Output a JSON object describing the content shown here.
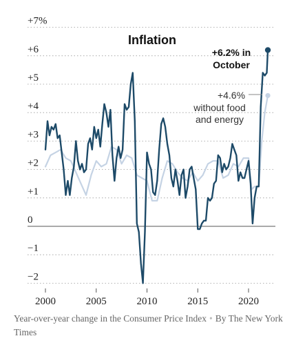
{
  "chart_data": {
    "type": "line",
    "title": "Inflation",
    "xlim": [
      1999.3,
      2023.2
    ],
    "ylim": [
      -2.2,
      7.2
    ],
    "y_ticks": [
      7,
      6,
      5,
      4,
      3,
      2,
      1,
      0,
      -1,
      -2
    ],
    "y_tick_labels": [
      "+7%",
      "+6",
      "+5",
      "+4",
      "+3",
      "+2",
      "+1",
      "0",
      "−1",
      "−2"
    ],
    "x_ticks": [
      2000,
      2005,
      2010,
      2015,
      2020
    ],
    "x_tick_labels": [
      "2000",
      "2005",
      "2010",
      "2015",
      "2020"
    ],
    "zero_line": true,
    "grid": "horizontal dotted",
    "colors": {
      "headline": "#1d4a68",
      "core": "#c5d3e4",
      "grid": "#999999",
      "zero_line": "#777777",
      "tick_text": "#222222"
    },
    "series": [
      {
        "key": "headline",
        "x": [
          2000.0,
          2000.2,
          2000.4,
          2000.6,
          2000.8,
          2001.0,
          2001.2,
          2001.4,
          2001.6,
          2001.8,
          2002.0,
          2002.2,
          2002.4,
          2002.6,
          2002.8,
          2003.0,
          2003.2,
          2003.4,
          2003.6,
          2003.8,
          2004.0,
          2004.2,
          2004.4,
          2004.6,
          2004.8,
          2005.0,
          2005.2,
          2005.4,
          2005.6,
          2005.8,
          2006.0,
          2006.2,
          2006.4,
          2006.6,
          2006.8,
          2007.0,
          2007.2,
          2007.4,
          2007.6,
          2007.8,
          2008.0,
          2008.2,
          2008.4,
          2008.6,
          2008.8,
          2009.0,
          2009.2,
          2009.4,
          2009.6,
          2009.8,
          2010.0,
          2010.2,
          2010.4,
          2010.6,
          2010.8,
          2011.0,
          2011.2,
          2011.4,
          2011.6,
          2011.8,
          2012.0,
          2012.2,
          2012.4,
          2012.6,
          2012.8,
          2013.0,
          2013.2,
          2013.4,
          2013.6,
          2013.8,
          2014.0,
          2014.2,
          2014.4,
          2014.6,
          2014.8,
          2015.0,
          2015.2,
          2015.4,
          2015.6,
          2015.8,
          2016.0,
          2016.2,
          2016.4,
          2016.6,
          2016.8,
          2017.0,
          2017.2,
          2017.4,
          2017.6,
          2017.8,
          2018.0,
          2018.2,
          2018.4,
          2018.6,
          2018.8,
          2019.0,
          2019.2,
          2019.4,
          2019.6,
          2019.8,
          2020.0,
          2020.2,
          2020.4,
          2020.6,
          2020.8,
          2021.0,
          2021.2,
          2021.4,
          2021.6,
          2021.8,
          2021.9
        ],
        "values": [
          2.7,
          3.7,
          3.2,
          3.5,
          3.4,
          3.6,
          3.1,
          3.2,
          2.6,
          2.0,
          1.1,
          1.6,
          1.1,
          1.7,
          2.1,
          3.0,
          2.3,
          2.0,
          2.2,
          1.9,
          2.0,
          2.9,
          3.1,
          2.7,
          3.5,
          3.1,
          3.4,
          2.8,
          3.6,
          4.3,
          4.0,
          3.5,
          4.1,
          2.5,
          1.6,
          2.4,
          2.8,
          2.4,
          2.7,
          4.3,
          4.1,
          4.2,
          5.0,
          5.4,
          3.7,
          0.1,
          -0.2,
          -1.3,
          -2.0,
          -0.2,
          2.6,
          2.2,
          2.0,
          1.2,
          1.1,
          1.6,
          2.7,
          3.6,
          3.8,
          3.5,
          2.9,
          2.5,
          1.7,
          1.4,
          2.0,
          1.6,
          1.1,
          1.8,
          2.0,
          1.0,
          1.4,
          2.0,
          2.1,
          1.7,
          1.3,
          -0.1,
          -0.1,
          0.1,
          0.2,
          0.2,
          1.0,
          0.9,
          1.0,
          1.5,
          1.6,
          2.5,
          2.4,
          1.9,
          2.2,
          2.0,
          2.1,
          2.4,
          2.9,
          2.7,
          2.5,
          1.6,
          1.9,
          1.7,
          1.7,
          2.0,
          2.3,
          1.5,
          0.1,
          1.0,
          1.4,
          1.4,
          4.2,
          5.4,
          5.3,
          5.4,
          6.2
        ]
      },
      {
        "key": "core",
        "x": [
          2000.0,
          2000.5,
          2001.0,
          2001.5,
          2002.0,
          2002.5,
          2003.0,
          2003.5,
          2004.0,
          2004.5,
          2005.0,
          2005.5,
          2006.0,
          2006.5,
          2007.0,
          2007.5,
          2008.0,
          2008.5,
          2009.0,
          2009.5,
          2010.0,
          2010.5,
          2011.0,
          2011.5,
          2012.0,
          2012.5,
          2013.0,
          2013.5,
          2014.0,
          2014.5,
          2015.0,
          2015.5,
          2016.0,
          2016.5,
          2017.0,
          2017.5,
          2018.0,
          2018.5,
          2019.0,
          2019.5,
          2020.0,
          2020.3,
          2020.6,
          2021.0,
          2021.3,
          2021.6,
          2021.9
        ],
        "values": [
          2.1,
          2.5,
          2.6,
          2.7,
          2.4,
          2.3,
          1.9,
          1.5,
          1.1,
          1.8,
          2.3,
          2.1,
          2.2,
          2.8,
          2.7,
          2.2,
          2.5,
          2.4,
          1.8,
          1.7,
          1.6,
          0.9,
          0.9,
          1.7,
          2.3,
          2.2,
          1.9,
          1.7,
          1.6,
          1.9,
          1.6,
          1.8,
          2.2,
          2.3,
          2.3,
          1.7,
          1.8,
          2.2,
          2.1,
          2.4,
          2.4,
          1.3,
          1.4,
          1.4,
          3.0,
          4.0,
          4.6
        ]
      }
    ],
    "annotations": {
      "headline_lines": [
        "+6.2% in",
        "October"
      ],
      "core_lines": [
        "+4.6%",
        "without food",
        "and energy"
      ]
    }
  },
  "caption": {
    "source_text": "Year-over-year change in the Consumer Price Index",
    "separator": "•",
    "credit": "By The New York Times"
  }
}
